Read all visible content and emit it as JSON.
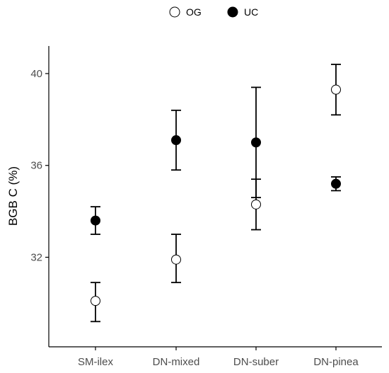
{
  "chart_data": {
    "type": "scatter",
    "categories": [
      "SM-ilex",
      "DN-mixed",
      "DN-suber",
      "DN-pinea"
    ],
    "ylabel": "BGB C (%)",
    "xlabel": "",
    "ylim": [
      28.1,
      41.2
    ],
    "yticks": [
      32,
      36,
      40
    ],
    "grid": false,
    "legend_position": "top",
    "series": [
      {
        "name": "OG",
        "marker": "open-circle",
        "color": "#000000",
        "fill": "#ffffff",
        "values": [
          30.1,
          31.9,
          34.3,
          39.3
        ],
        "lower": [
          29.2,
          30.9,
          33.2,
          38.2
        ],
        "upper": [
          30.9,
          33.0,
          35.4,
          40.4
        ]
      },
      {
        "name": "UC",
        "marker": "filled-circle",
        "color": "#000000",
        "fill": "#000000",
        "values": [
          33.6,
          37.1,
          37.0,
          35.2
        ],
        "lower": [
          33.0,
          35.8,
          34.6,
          34.9
        ],
        "upper": [
          34.2,
          38.4,
          39.4,
          35.5
        ]
      }
    ]
  }
}
